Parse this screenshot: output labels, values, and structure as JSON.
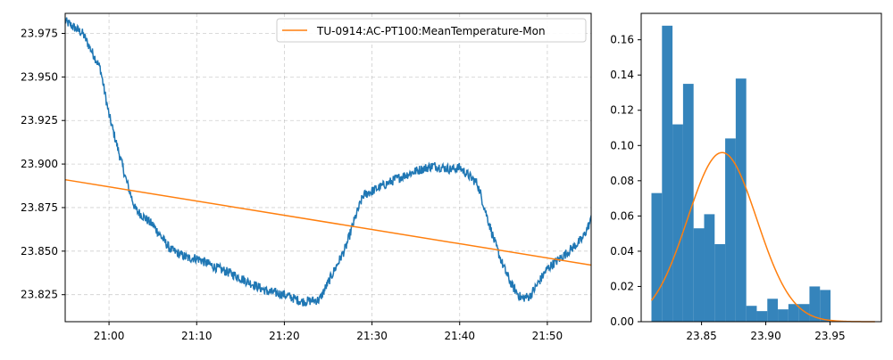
{
  "chart_data": [
    {
      "type": "line",
      "title": "",
      "xlabel": "",
      "ylabel": "",
      "xlim": [
        "20:55",
        "21:55"
      ],
      "ylim": [
        23.8095,
        23.9865
      ],
      "x_ticks": [
        "21:00",
        "21:10",
        "21:20",
        "21:30",
        "21:40",
        "21:50"
      ],
      "y_ticks": [
        "23.825",
        "23.850",
        "23.875",
        "23.900",
        "23.925",
        "23.950",
        "23.975"
      ],
      "grid": true,
      "legend_position": "top-right",
      "series": [
        {
          "color": "#1f77b4",
          "x": [
            "20:55",
            "20:57",
            "20:59",
            "21:00",
            "21:02",
            "21:03",
            "21:05",
            "21:07",
            "21:09",
            "21:10",
            "21:12",
            "21:14",
            "21:16",
            "21:18",
            "21:20",
            "21:22",
            "21:24",
            "21:25",
            "21:27",
            "21:28",
            "21:29",
            "21:31",
            "21:33",
            "21:35",
            "21:37",
            "21:39",
            "21:40",
            "21:42",
            "21:43",
            "21:44",
            "21:45",
            "21:46",
            "21:47",
            "21:48",
            "21:50",
            "21:52",
            "21:54",
            "21:55"
          ],
          "values": [
            23.982,
            23.975,
            23.955,
            23.928,
            23.89,
            23.874,
            23.865,
            23.851,
            23.846,
            23.846,
            23.841,
            23.837,
            23.832,
            23.827,
            23.825,
            23.821,
            23.822,
            23.832,
            23.852,
            23.868,
            23.882,
            23.887,
            23.892,
            23.896,
            23.899,
            23.897,
            23.898,
            23.889,
            23.872,
            23.855,
            23.841,
            23.83,
            23.823,
            23.824,
            23.84,
            23.848,
            23.857,
            23.868
          ]
        },
        {
          "name": "TU-0914:AC-PT100:MeanTemperature-Mon",
          "color": "#ff7f0e",
          "x": [
            "20:55",
            "21:55"
          ],
          "values": [
            23.891,
            23.842
          ]
        }
      ]
    },
    {
      "type": "bar",
      "title": "",
      "xlabel": "",
      "ylabel": "",
      "xlim": [
        23.803,
        23.99
      ],
      "ylim": [
        0,
        0.175
      ],
      "x_ticks": [
        "23.85",
        "23.90",
        "23.95"
      ],
      "y_ticks": [
        "0.00",
        "0.02",
        "0.04",
        "0.06",
        "0.08",
        "0.10",
        "0.12",
        "0.14",
        "0.16"
      ],
      "grid": false,
      "bin_start": 23.811,
      "bin_width": 0.0082,
      "series": [
        {
          "color": "#1f77b4",
          "values": [
            0.073,
            0.168,
            0.112,
            0.135,
            0.053,
            0.061,
            0.044,
            0.104,
            0.138,
            0.009,
            0.006,
            0.013,
            0.007,
            0.01,
            0.01,
            0.02,
            0.018
          ]
        },
        {
          "color": "#ff7f0e",
          "curve": "normal",
          "mean": 23.866,
          "peak": 0.096,
          "sd": 0.027,
          "x_start": 23.811,
          "x_end": 23.985
        }
      ]
    }
  ]
}
